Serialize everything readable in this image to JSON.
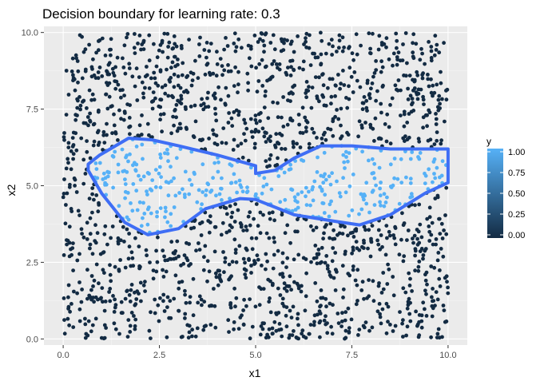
{
  "chart_data": {
    "type": "scatter",
    "title": "Decision boundary for learning rate: 0.3",
    "xlabel": "x1",
    "ylabel": "x2",
    "xlim": [
      -0.5,
      10.5
    ],
    "ylim": [
      -0.2,
      10.2
    ],
    "x_ticks": [
      0,
      2.5,
      5,
      7.5,
      10
    ],
    "x_tick_labels": [
      "0.0",
      "2.5",
      "5.0",
      "7.5",
      "10.0"
    ],
    "y_ticks": [
      0,
      2.5,
      5,
      7.5,
      10
    ],
    "y_tick_labels": [
      "0.0",
      "2.5",
      "5.0",
      "7.5",
      "10.0"
    ],
    "grid": true,
    "background": "#ebebeb",
    "point_count": 2000,
    "point_domain": {
      "x": [
        0,
        10
      ],
      "y": [
        0,
        10
      ]
    },
    "point_color_rule": "y = 1 inside the bowtie region shown by the boundary, else 0",
    "colors": {
      "low": "#132b43",
      "high": "#56b1f7",
      "boundary": "#3f6ef5"
    },
    "boundary": {
      "name": "decision boundary",
      "outline": [
        [
          0.65,
          5.5
        ],
        [
          0.65,
          5.7
        ],
        [
          0.95,
          6.0
        ],
        [
          1.7,
          6.55
        ],
        [
          2.3,
          6.5
        ],
        [
          3.0,
          6.3
        ],
        [
          4.0,
          6.0
        ],
        [
          5.0,
          5.65
        ],
        [
          5.0,
          5.4
        ],
        [
          5.5,
          5.5
        ],
        [
          6.0,
          5.9
        ],
        [
          6.7,
          6.3
        ],
        [
          7.5,
          6.3
        ],
        [
          8.5,
          6.2
        ],
        [
          10.0,
          6.2
        ]
      ],
      "outline_lower": [
        [
          10.0,
          5.1
        ],
        [
          9.4,
          4.75
        ],
        [
          8.5,
          4.05
        ],
        [
          7.7,
          3.72
        ],
        [
          7.0,
          3.85
        ],
        [
          6.0,
          4.05
        ],
        [
          5.0,
          4.55
        ],
        [
          4.6,
          4.58
        ],
        [
          3.7,
          4.25
        ],
        [
          3.0,
          3.6
        ],
        [
          2.2,
          3.4
        ],
        [
          1.6,
          3.8
        ],
        [
          1.0,
          4.75
        ],
        [
          0.65,
          5.5
        ]
      ]
    },
    "legend": {
      "title": "y",
      "position": "right",
      "ticks": [
        0,
        0.25,
        0.5,
        0.75,
        1
      ],
      "tick_labels": [
        "0.00",
        "0.25",
        "0.50",
        "0.75",
        "1.00"
      ]
    }
  }
}
